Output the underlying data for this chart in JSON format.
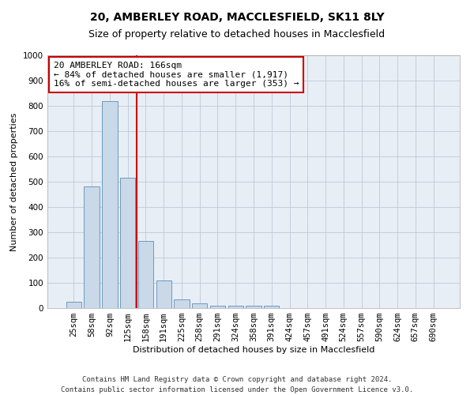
{
  "title": "20, AMBERLEY ROAD, MACCLESFIELD, SK11 8LY",
  "subtitle": "Size of property relative to detached houses in Macclesfield",
  "xlabel": "Distribution of detached houses by size in Macclesfield",
  "ylabel": "Number of detached properties",
  "footer_line1": "Contains HM Land Registry data © Crown copyright and database right 2024.",
  "footer_line2": "Contains public sector information licensed under the Open Government Licence v3.0.",
  "categories": [
    "25sqm",
    "58sqm",
    "92sqm",
    "125sqm",
    "158sqm",
    "191sqm",
    "225sqm",
    "258sqm",
    "291sqm",
    "324sqm",
    "358sqm",
    "391sqm",
    "424sqm",
    "457sqm",
    "491sqm",
    "524sqm",
    "557sqm",
    "590sqm",
    "624sqm",
    "657sqm",
    "690sqm"
  ],
  "values": [
    25,
    480,
    820,
    515,
    265,
    110,
    35,
    20,
    10,
    8,
    8,
    8,
    0,
    0,
    0,
    0,
    0,
    0,
    0,
    0,
    0
  ],
  "bar_color": "#c9d9e8",
  "bar_edge_color": "#5b8db8",
  "red_line_index": 3.5,
  "property_label": "20 AMBERLEY ROAD: 166sqm",
  "annotation_line1": "← 84% of detached houses are smaller (1,917)",
  "annotation_line2": "16% of semi-detached houses are larger (353) →",
  "ylim": [
    0,
    1000
  ],
  "yticks": [
    0,
    100,
    200,
    300,
    400,
    500,
    600,
    700,
    800,
    900,
    1000
  ],
  "grid_color": "#c0c8d8",
  "background_color": "#e8eef5",
  "red_line_color": "#cc0000",
  "annotation_box_color": "#ffffff",
  "annotation_border_color": "#cc0000",
  "title_fontsize": 10,
  "subtitle_fontsize": 9,
  "axis_label_fontsize": 8,
  "tick_fontsize": 7.5,
  "annotation_fontsize": 8,
  "footer_fontsize": 6.5
}
